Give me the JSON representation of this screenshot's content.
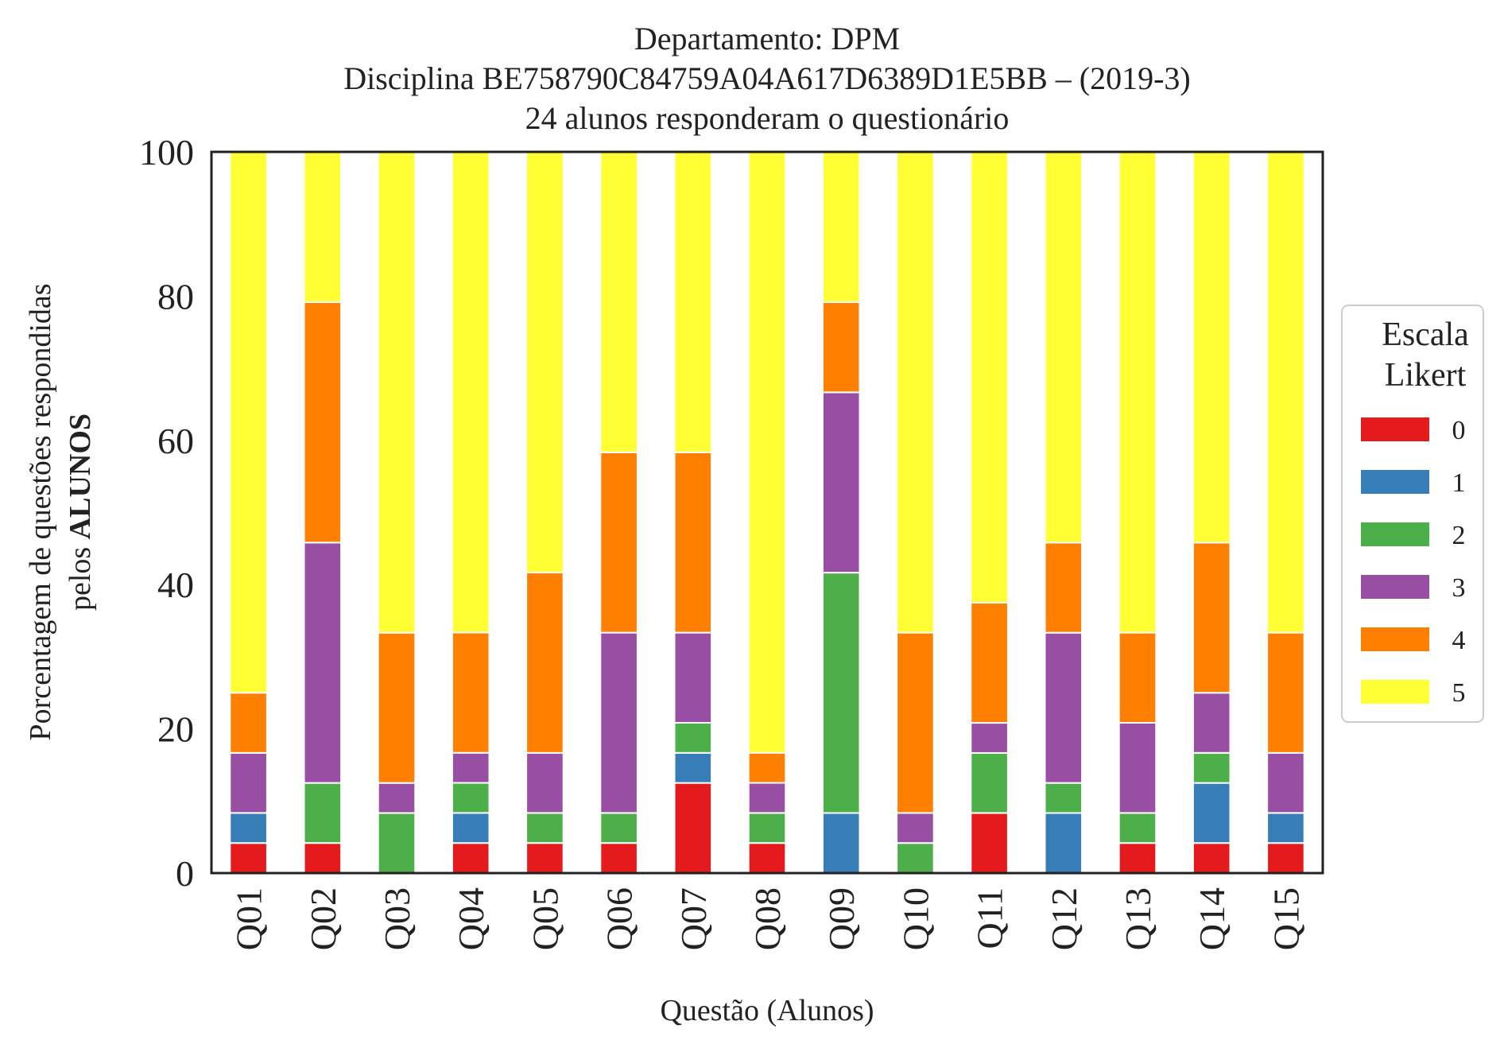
{
  "chart_data": {
    "type": "bar",
    "stacked": true,
    "title_lines": [
      "Departamento: DPM",
      "Disciplina BE758790C84759A04A617D6389D1E5BB – (2019-3)",
      "24 alunos responderam o questionário"
    ],
    "xlabel": "Questão (Alunos)",
    "ylabel_line1": "Porcentagem de questões respondidas",
    "ylabel_line2_prefix": "pelos ",
    "ylabel_line2_bold": "ALUNOS",
    "ylim": [
      0,
      100
    ],
    "yticks": [
      "0",
      "20",
      "40",
      "60",
      "80",
      "100"
    ],
    "grid": false,
    "legend_position": "right",
    "legend_title_lines": [
      "Escala",
      "Likert"
    ],
    "categories": [
      "Q01",
      "Q02",
      "Q03",
      "Q04",
      "Q05",
      "Q06",
      "Q07",
      "Q08",
      "Q09",
      "Q10",
      "Q11",
      "Q12",
      "Q13",
      "Q14",
      "Q15"
    ],
    "series": [
      {
        "name": "0",
        "color": "#e41a1c",
        "values": [
          4.17,
          4.17,
          0,
          4.17,
          4.17,
          4.17,
          12.5,
          4.17,
          0,
          0,
          8.33,
          0,
          4.17,
          4.17,
          4.17
        ]
      },
      {
        "name": "1",
        "color": "#377eb8",
        "values": [
          4.17,
          0,
          0,
          4.17,
          0,
          0,
          4.17,
          0,
          8.33,
          0,
          0,
          8.33,
          0,
          8.33,
          4.17
        ]
      },
      {
        "name": "2",
        "color": "#4daf4a",
        "values": [
          0,
          8.33,
          8.33,
          4.17,
          4.17,
          4.17,
          4.17,
          4.17,
          33.33,
          4.17,
          8.33,
          4.17,
          4.17,
          4.17,
          0
        ]
      },
      {
        "name": "3",
        "color": "#984ea3",
        "values": [
          8.33,
          33.33,
          4.17,
          4.17,
          8.33,
          25,
          12.5,
          4.17,
          25,
          4.17,
          4.17,
          20.83,
          12.5,
          8.33,
          8.33
        ]
      },
      {
        "name": "4",
        "color": "#ff7f00",
        "values": [
          8.33,
          33.33,
          20.83,
          16.67,
          25,
          25,
          25,
          4.17,
          12.5,
          25,
          16.67,
          12.5,
          12.5,
          20.83,
          16.67
        ]
      },
      {
        "name": "5",
        "color": "#ffff33",
        "values": [
          75,
          20.83,
          66.67,
          66.67,
          58.33,
          41.67,
          41.67,
          83.33,
          20.83,
          66.67,
          62.5,
          54.17,
          66.67,
          54.17,
          66.67
        ]
      }
    ]
  }
}
